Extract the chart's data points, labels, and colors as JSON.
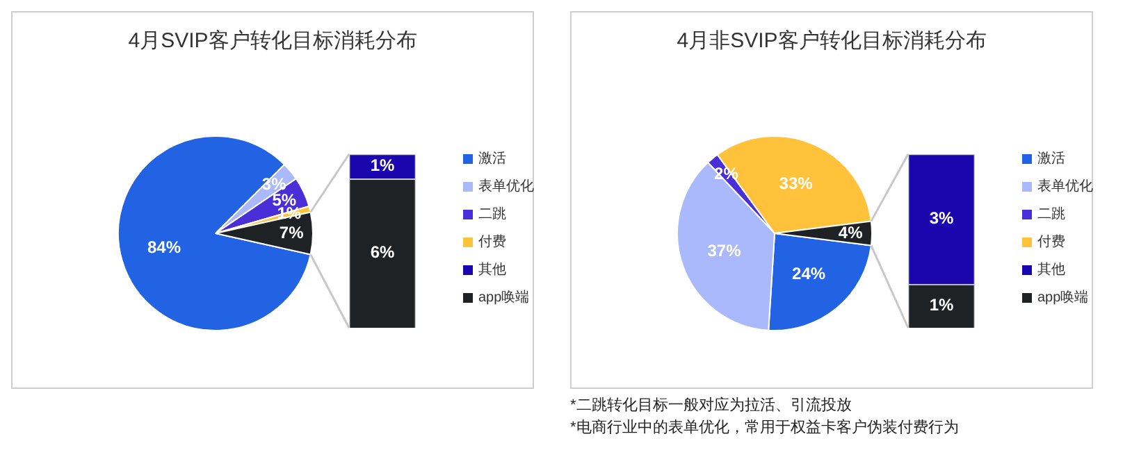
{
  "chart_data": [
    {
      "type": "pie",
      "title": "4月SVIP客户转化目标消耗分布",
      "categories": [
        "激活",
        "表单优化",
        "二跳",
        "付费",
        null
      ],
      "values": [
        84,
        3,
        5,
        1,
        7
      ],
      "value_labels": [
        "84%",
        "3%",
        "5%",
        "1%",
        "7%"
      ],
      "colors": [
        "#2163e3",
        "#a9b9fb",
        "#4a2fd8",
        "#ffc23a",
        "#1f2224"
      ],
      "legend": "right"
    },
    {
      "type": "bar",
      "stacked": true,
      "categories": [
        null
      ],
      "ylim": [
        0,
        7
      ],
      "tick_labels": false,
      "legend": "right",
      "series": [
        {
          "name": "app唤端",
          "color": "#1f2224",
          "values": [
            6
          ],
          "value_labels": [
            "6%"
          ]
        },
        {
          "name": "其他",
          "color": "#1b05ad",
          "values": [
            1
          ],
          "value_labels": [
            "1%"
          ]
        }
      ]
    },
    {
      "type": "pie",
      "title": "4月非SVIP客户转化目标消耗分布",
      "categories": [
        "激活",
        "表单优化",
        "二跳",
        "付费",
        null
      ],
      "values": [
        24,
        37,
        2,
        33,
        4
      ],
      "value_labels": [
        "24%",
        "37%",
        "2%",
        "33%",
        "4%"
      ],
      "colors": [
        "#2163e3",
        "#a9b9fb",
        "#4a2fd8",
        "#ffc23a",
        "#1f2224"
      ],
      "legend": "right",
      "annotations": [
        "*二跳转化目标一般对应为拉活、引流投放",
        "*电商行业中的表单优化，常用于权益卡客户伪装付费行为"
      ]
    },
    {
      "type": "bar",
      "stacked": true,
      "categories": [
        null
      ],
      "ylim": [
        0,
        4
      ],
      "tick_labels": false,
      "legend": "right",
      "series": [
        {
          "name": "app唤端",
          "color": "#1f2224",
          "values": [
            1
          ],
          "value_labels": [
            "1%"
          ]
        },
        {
          "name": "其他",
          "color": "#1b05ad",
          "values": [
            3
          ],
          "value_labels": [
            "3%"
          ]
        }
      ]
    }
  ]
}
